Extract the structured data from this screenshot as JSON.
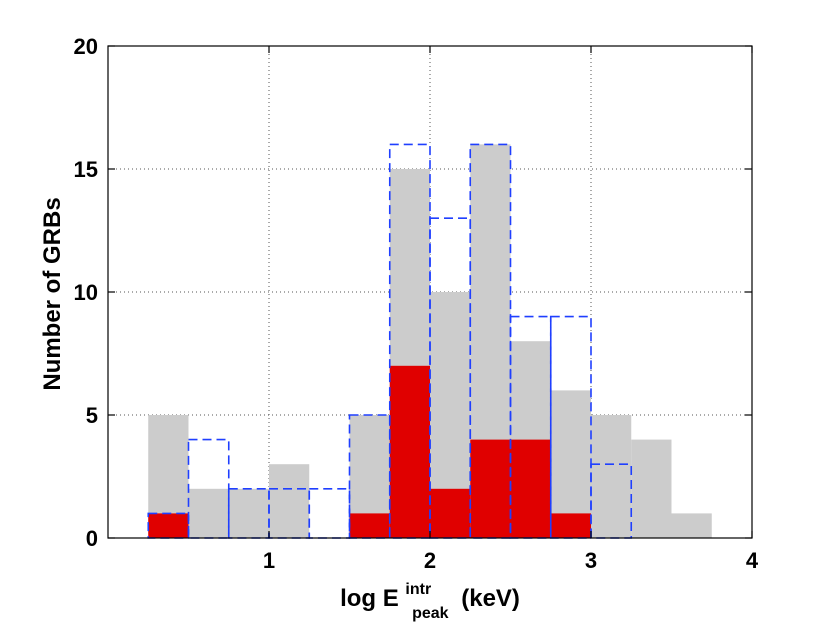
{
  "chart_data": {
    "type": "bar",
    "xlabel": {
      "main": "log E",
      "superscript": "intr",
      "subscript": "peak",
      "suffix": "(keV)"
    },
    "ylabel": "Number of GRBs",
    "xlim": [
      0,
      4
    ],
    "ylim": [
      0,
      20
    ],
    "xticks": [
      1,
      2,
      3,
      4
    ],
    "yticks": [
      0,
      5,
      10,
      15,
      20
    ],
    "grid": true,
    "bin_width": 0.25,
    "bin_starts": [
      0.25,
      0.5,
      0.75,
      1.0,
      1.25,
      1.5,
      1.75,
      2.0,
      2.25,
      2.5,
      2.75,
      3.0,
      3.25,
      3.5
    ],
    "series": [
      {
        "style": "filled",
        "color": "#cccccc",
        "values": [
          5,
          2,
          2,
          3,
          0,
          5,
          15,
          10,
          16,
          8,
          6,
          5,
          4,
          1
        ]
      },
      {
        "style": "filled",
        "color": "#e00000",
        "values": [
          1,
          0,
          0,
          0,
          0,
          1,
          7,
          2,
          4,
          4,
          1,
          0,
          0,
          0
        ]
      },
      {
        "style": "dashed-outline",
        "color": "#1f3fff",
        "values": [
          1,
          4,
          2,
          2,
          2,
          5,
          16,
          13,
          16,
          9,
          9,
          3,
          0,
          0
        ]
      }
    ]
  }
}
